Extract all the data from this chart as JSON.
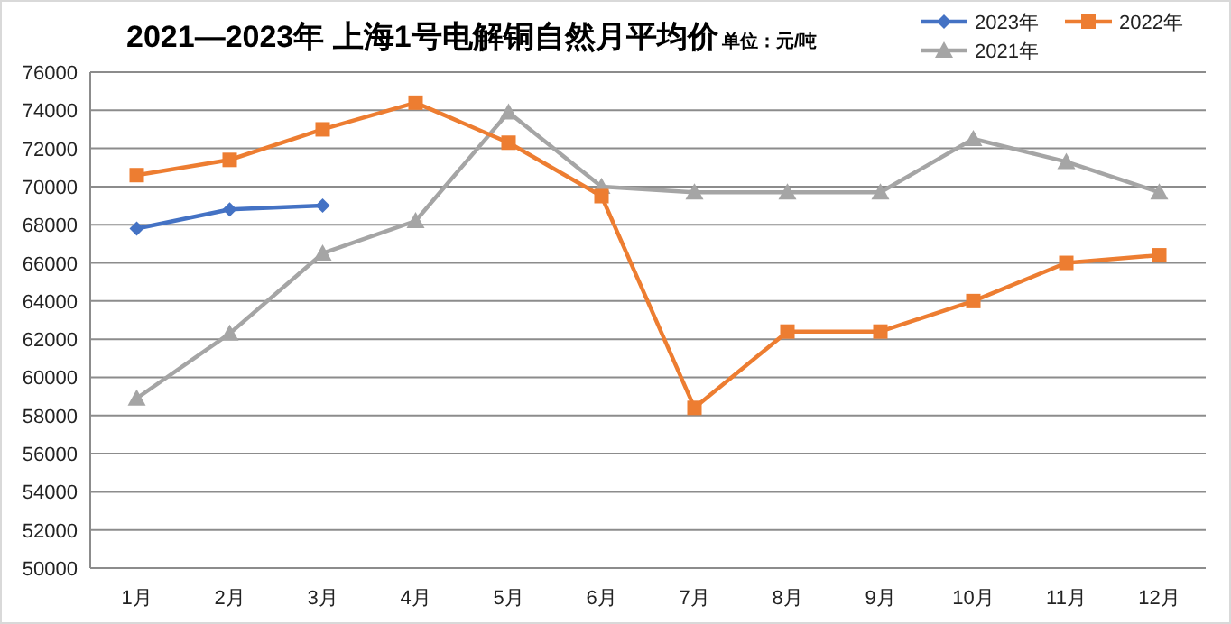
{
  "chart_data": {
    "type": "line",
    "title": "2021—2023年   上海1号电解铜自然月平均价",
    "subtitle": "单位：元/吨",
    "categories": [
      "1月",
      "2月",
      "3月",
      "4月",
      "5月",
      "6月",
      "7月",
      "8月",
      "9月",
      "10月",
      "11月",
      "12月"
    ],
    "series": [
      {
        "name": "2023年",
        "color": "#4472c4",
        "marker": "diamond",
        "values": [
          67800,
          68800,
          69000,
          null,
          null,
          null,
          null,
          null,
          null,
          null,
          null,
          null
        ]
      },
      {
        "name": "2022年",
        "color": "#ed7d31",
        "marker": "square",
        "values": [
          70600,
          71400,
          73000,
          74400,
          72300,
          69500,
          58400,
          62400,
          62400,
          64000,
          66000,
          66400
        ]
      },
      {
        "name": "2021年",
        "color": "#a5a5a5",
        "marker": "triangle",
        "values": [
          58900,
          62300,
          66500,
          68200,
          73900,
          70000,
          69700,
          69700,
          69700,
          72500,
          71300,
          69700
        ]
      }
    ],
    "ylim": [
      50000,
      76000
    ],
    "yticks": [
      50000,
      52000,
      54000,
      56000,
      58000,
      60000,
      62000,
      64000,
      66000,
      68000,
      70000,
      72000,
      74000,
      76000
    ],
    "grid": "y",
    "legend": "top right",
    "line_style": "solid"
  }
}
